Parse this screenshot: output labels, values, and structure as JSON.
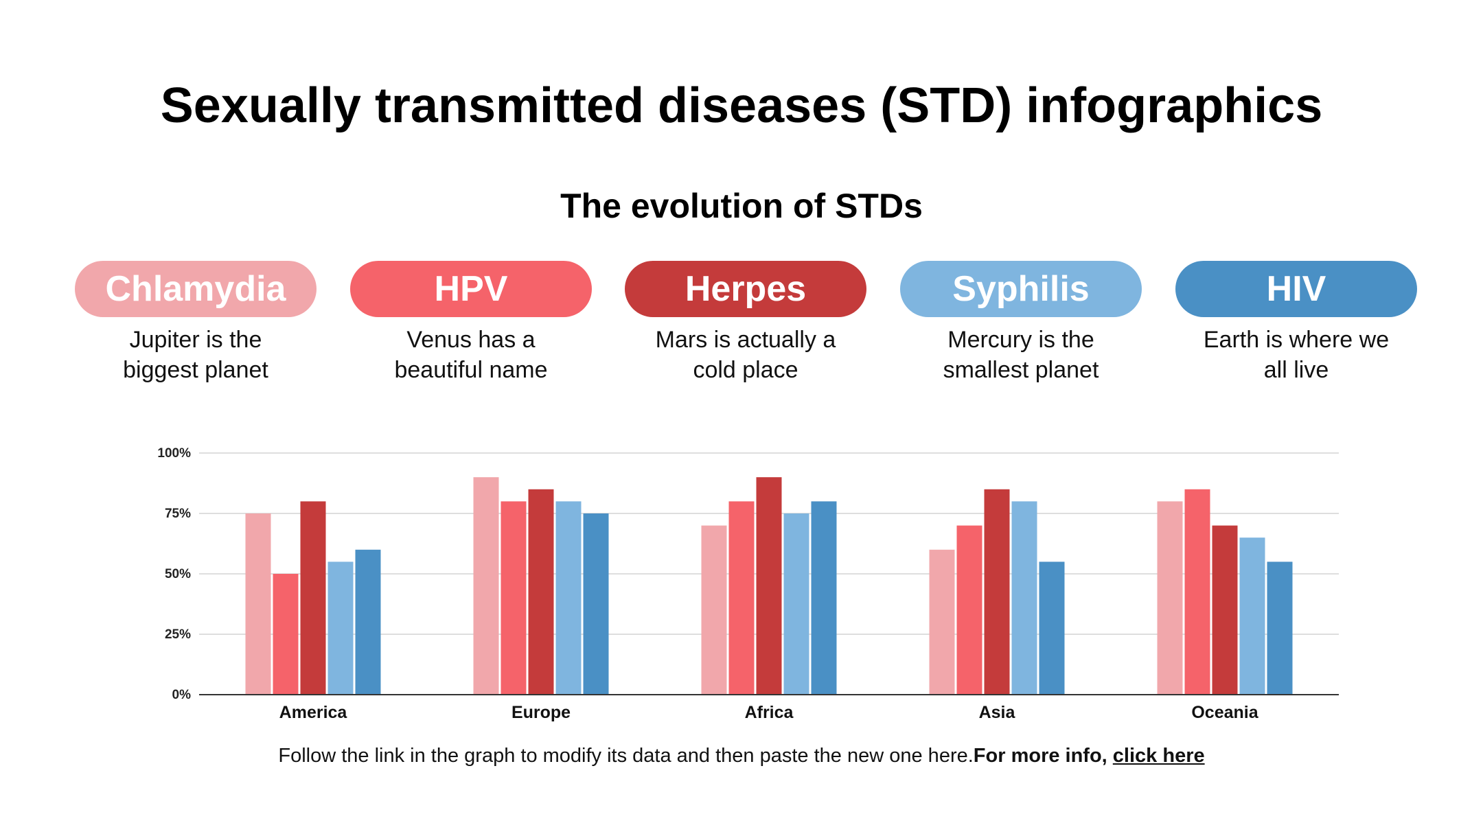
{
  "title": "Sexually transmitted diseases (STD) infographics",
  "subtitle": "The evolution of STDs",
  "legend": [
    {
      "label": "Chlamydia",
      "desc_line1": "Jupiter is the",
      "desc_line2": "biggest planet",
      "color": "#F1A7AB"
    },
    {
      "label": "HPV",
      "desc_line1": "Venus has a",
      "desc_line2": "beautiful name",
      "color": "#F5636A"
    },
    {
      "label": "Herpes",
      "desc_line1": "Mars is actually a",
      "desc_line2": "cold place",
      "color": "#C43B3B"
    },
    {
      "label": "Syphilis",
      "desc_line1": "Mercury is the",
      "desc_line2": "smallest planet",
      "color": "#7FB5DF"
    },
    {
      "label": "HIV",
      "desc_line1": "Earth is where we",
      "desc_line2": "all live",
      "color": "#4A90C5"
    }
  ],
  "chart_data": {
    "type": "bar",
    "title": "",
    "xlabel": "",
    "ylabel": "",
    "categories": [
      "America",
      "Europe",
      "Africa",
      "Asia",
      "Oceania"
    ],
    "series": [
      {
        "name": "Chlamydia",
        "color": "#F1A7AB",
        "values": [
          75,
          90,
          70,
          60,
          80
        ]
      },
      {
        "name": "HPV",
        "color": "#F5636A",
        "values": [
          50,
          80,
          80,
          70,
          85
        ]
      },
      {
        "name": "Herpes",
        "color": "#C43B3B",
        "values": [
          80,
          85,
          90,
          85,
          70
        ]
      },
      {
        "name": "Syphilis",
        "color": "#7FB5DF",
        "values": [
          55,
          80,
          75,
          80,
          65
        ]
      },
      {
        "name": "HIV",
        "color": "#4A90C5",
        "values": [
          60,
          75,
          80,
          55,
          55
        ]
      }
    ],
    "ylim": [
      0,
      100
    ],
    "yticks": [
      "0%",
      "25%",
      "50%",
      "75%",
      "100%"
    ],
    "grid": true
  },
  "footer": {
    "text": "Follow the link in the graph to modify its data and then paste the new one here.",
    "bold": "For more info, ",
    "link": "click here"
  }
}
